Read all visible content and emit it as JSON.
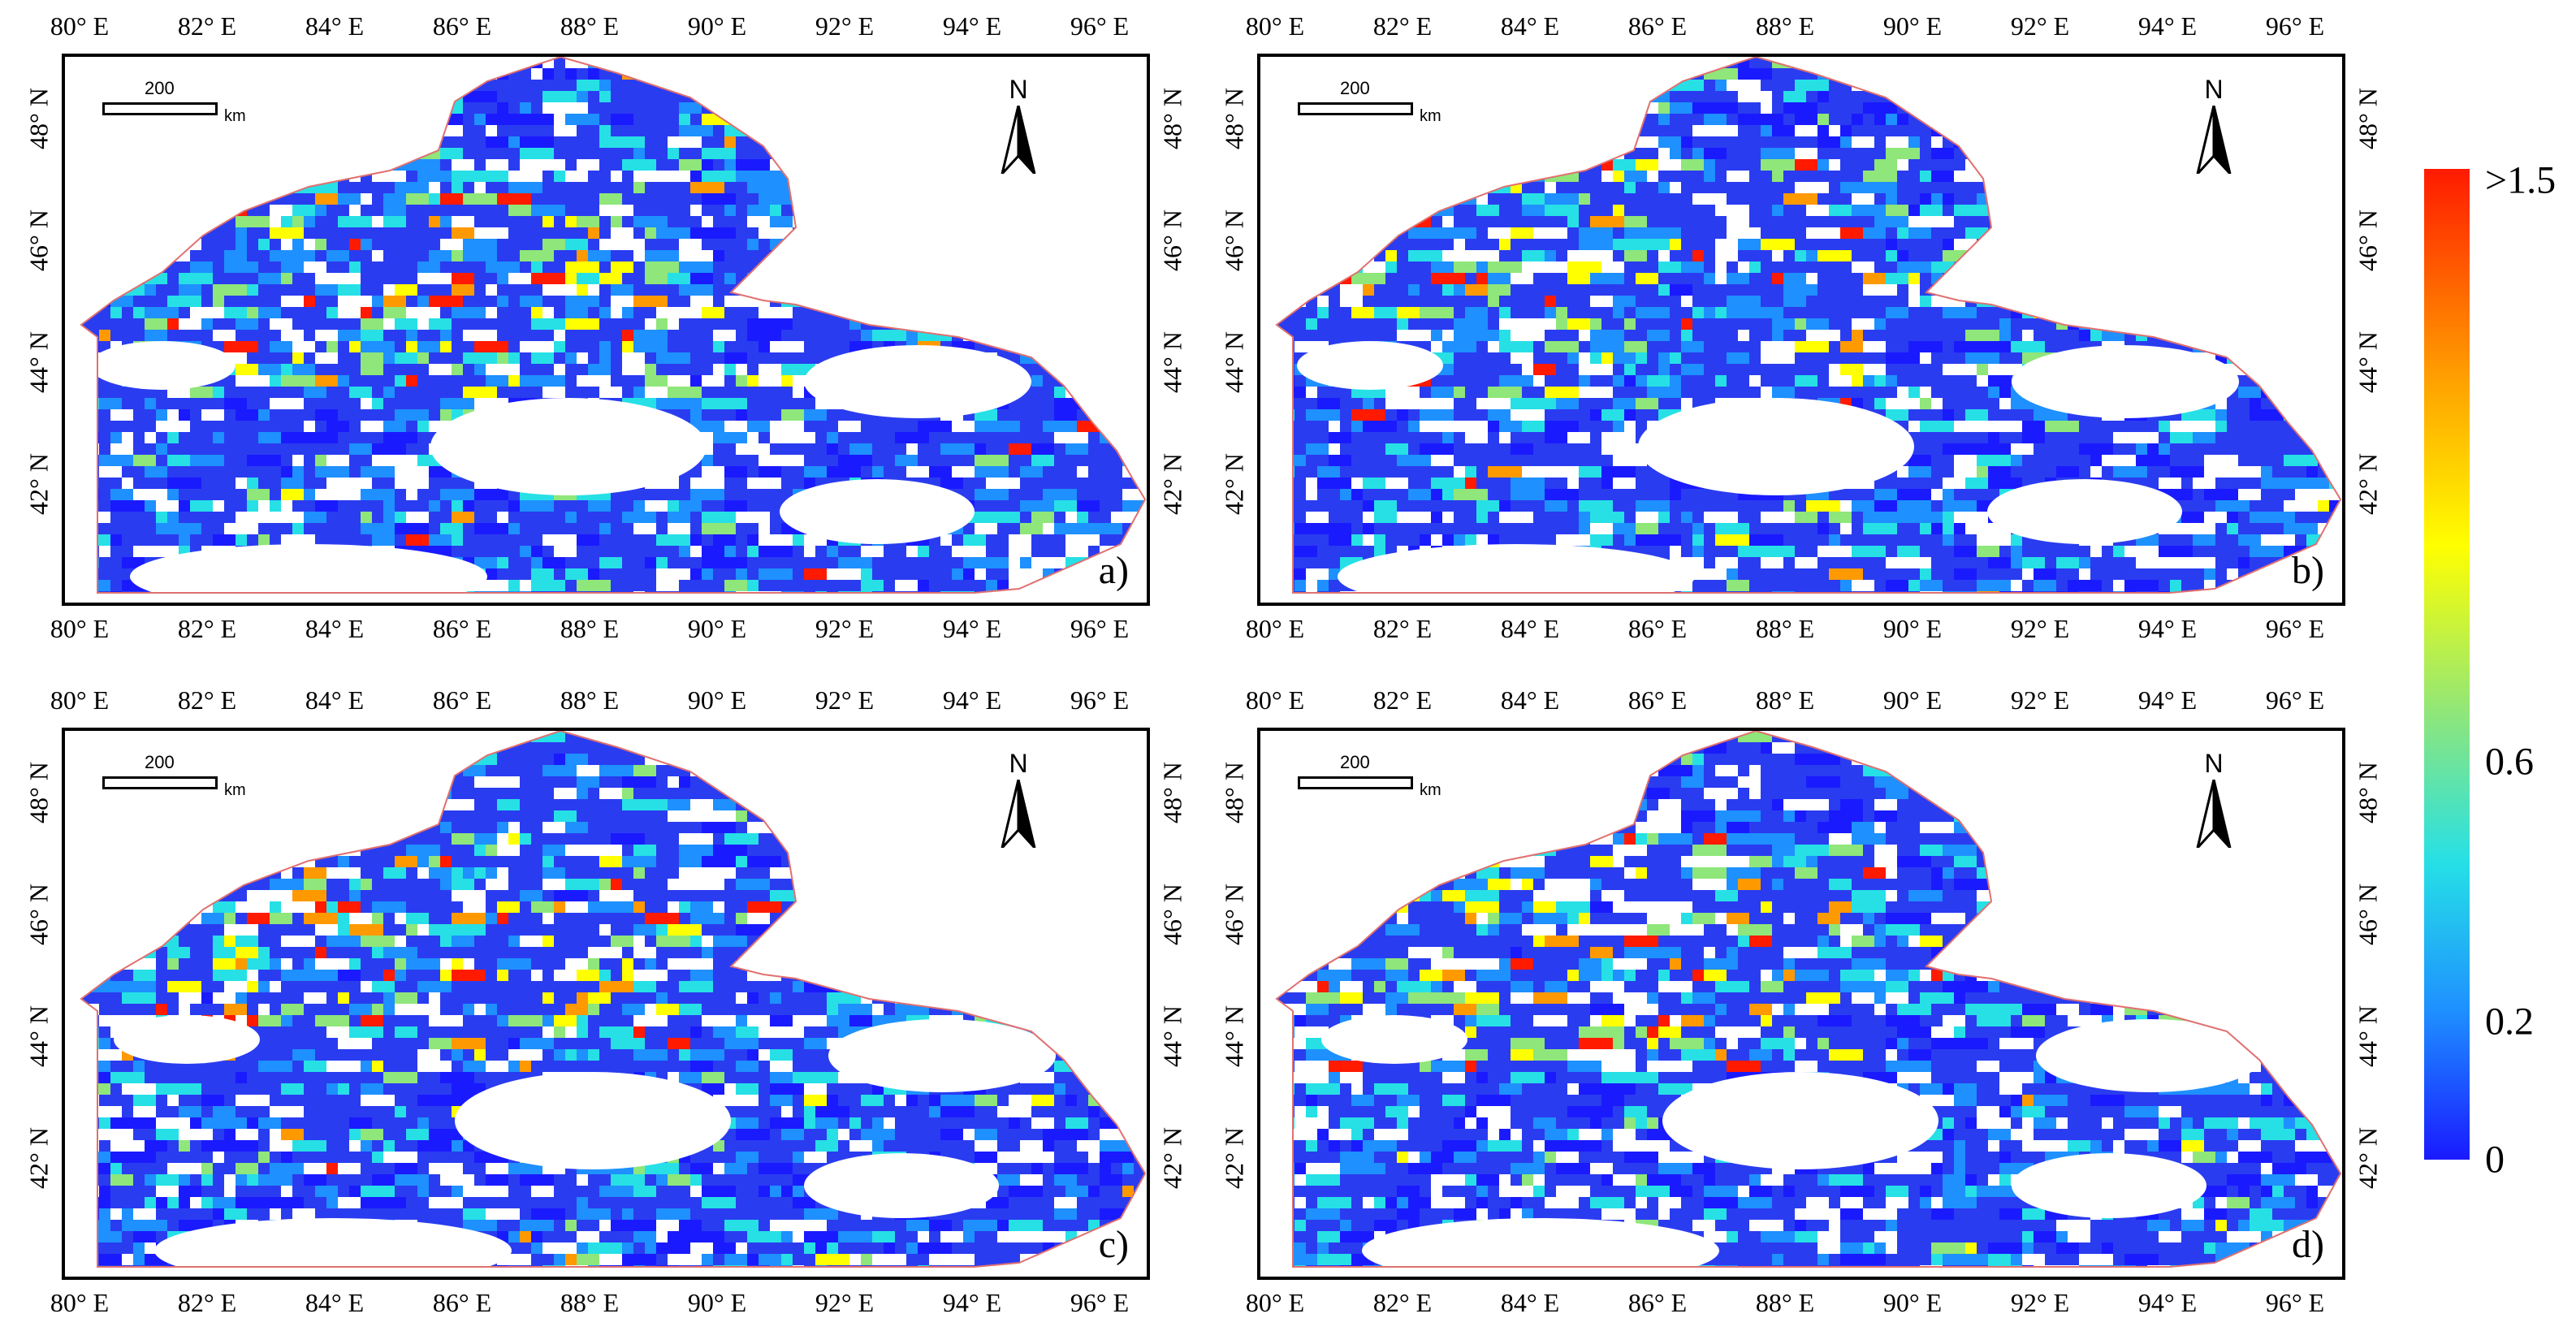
{
  "figure": {
    "panels": [
      {
        "id": "a",
        "label": "a)"
      },
      {
        "id": "b",
        "label": "b)"
      },
      {
        "id": "c",
        "label": "c)"
      },
      {
        "id": "d",
        "label": "d)"
      }
    ],
    "lon_labels": [
      "80° E",
      "82° E",
      "84° E",
      "86° E",
      "88° E",
      "90° E",
      "92° E",
      "94° E",
      "96° E"
    ],
    "lat_labels": [
      "48° N",
      "46° N",
      "44° N",
      "42° N"
    ],
    "scale_bar": {
      "value": "200",
      "unit": "km"
    },
    "north_arrow": {
      "label": "N",
      "icon": "north-arrow-icon"
    },
    "colorbar": {
      "ticks": [
        ">1.5",
        "0.6",
        "0.2",
        "0"
      ],
      "colors": [
        "#1a1aff",
        "#1e90ff",
        "#26e0e6",
        "#8fe67a",
        "#ffff00",
        "#ff9900",
        "#ff1a00"
      ]
    },
    "boundary_color": "#e07070"
  }
}
